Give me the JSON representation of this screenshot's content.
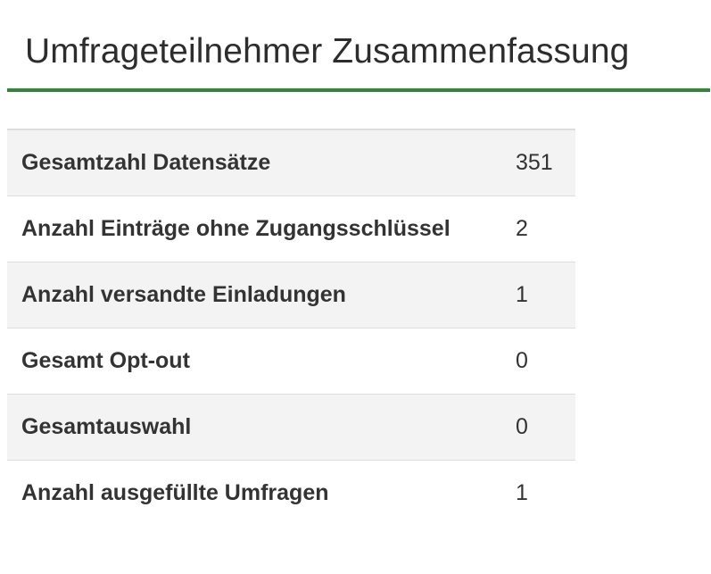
{
  "page": {
    "title": "Umfrageteilnehmer Zusammenfassung",
    "accent_color": "#328637"
  },
  "summary": {
    "rows": [
      {
        "label": "Gesamtzahl Datensätze",
        "value": "351"
      },
      {
        "label": "Anzahl Einträge ohne Zugangsschlüssel",
        "value": "2"
      },
      {
        "label": "Anzahl versandte Einladungen",
        "value": "1"
      },
      {
        "label": "Gesamt Opt-out",
        "value": "0"
      },
      {
        "label": "Gesamtauswahl",
        "value": "0"
      },
      {
        "label": "Anzahl ausgefüllte Umfragen",
        "value": "1"
      }
    ]
  }
}
